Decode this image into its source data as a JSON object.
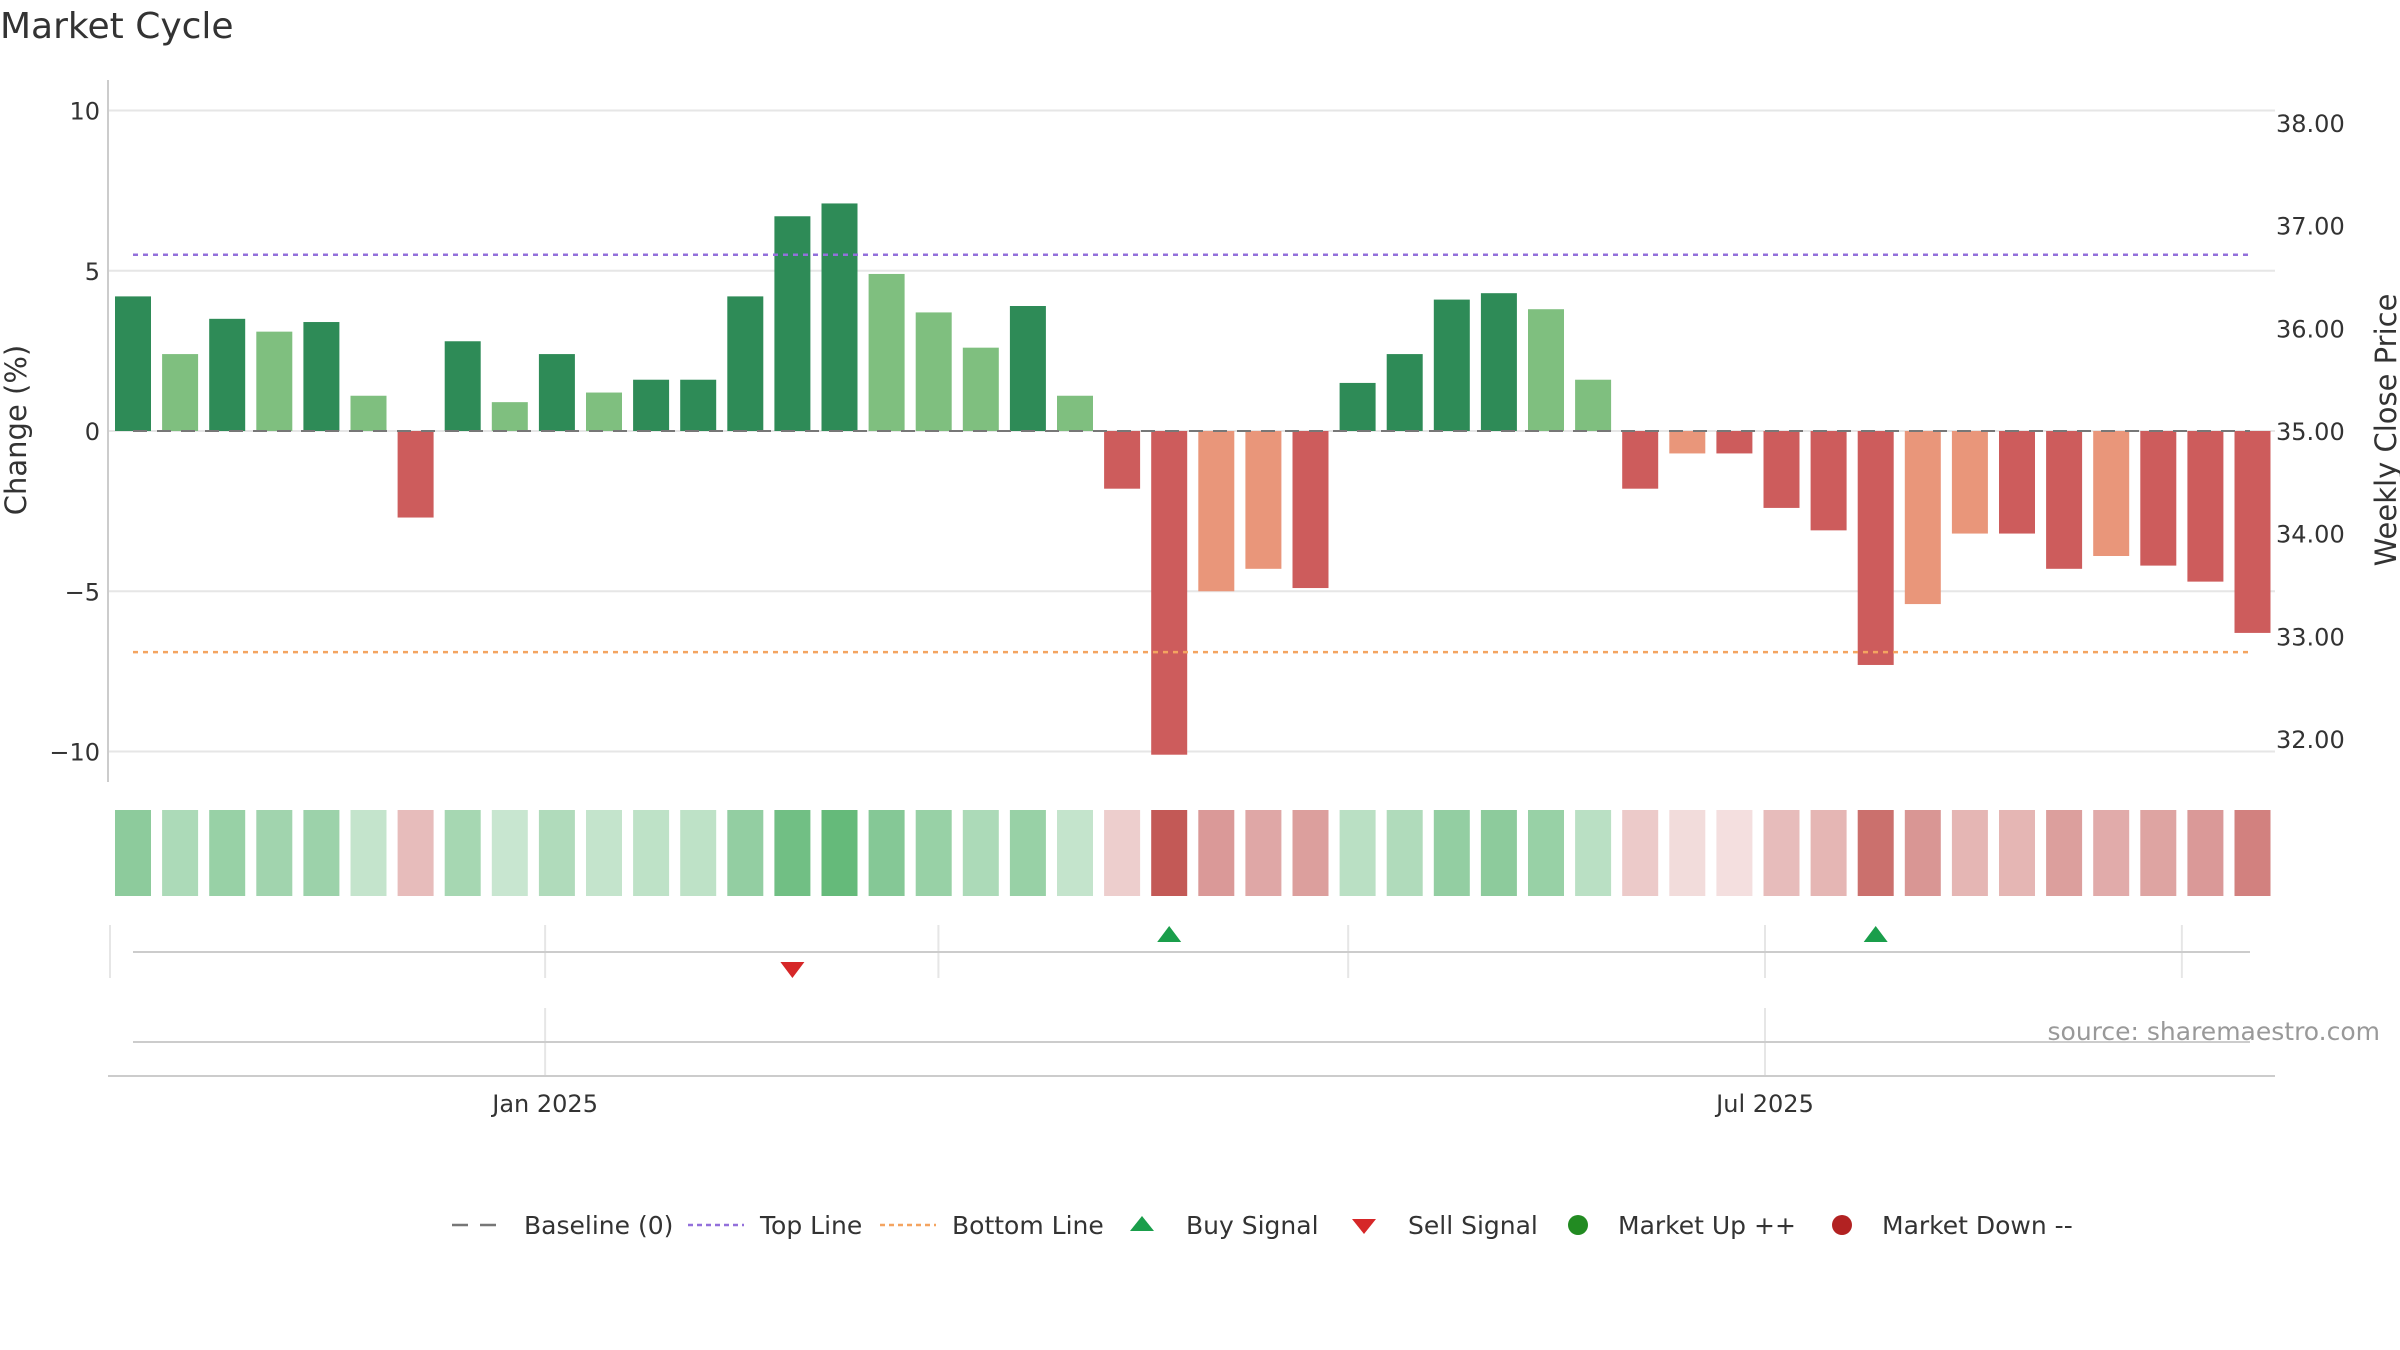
{
  "chart_data": {
    "type": "bar",
    "title": "Market Cycle",
    "ylabel": "Change (%)",
    "y2label": "Weekly Close Price",
    "ylim": [
      -11,
      11
    ],
    "y2lim": [
      31.6,
      38.3
    ],
    "yticks": [
      10,
      5,
      0,
      -5,
      -10
    ],
    "ytick_labels": [
      "10",
      "5",
      "0",
      "−5",
      "−10"
    ],
    "y2ticks": [
      38,
      37,
      36,
      35,
      34,
      33,
      32
    ],
    "y2tick_labels": [
      "38.00",
      "37.00",
      "36.00",
      "35.00",
      "34.00",
      "33.00",
      "32.00"
    ],
    "x_tick_labels": [
      {
        "label": "Jan 2025",
        "index": 8.75
      },
      {
        "label": "Jul 2025",
        "index": 34.65
      }
    ],
    "x_gridlines_signal": [
      8.75,
      17.1,
      25.8,
      34.65,
      43.5
    ],
    "values": [
      4.2,
      2.4,
      3.5,
      3.1,
      3.4,
      1.1,
      -2.7,
      2.8,
      0.9,
      2.4,
      1.2,
      1.6,
      1.6,
      4.2,
      6.7,
      7.1,
      4.9,
      3.7,
      2.6,
      3.9,
      1.1,
      -1.8,
      -10.1,
      -5.0,
      -4.3,
      -4.9,
      1.5,
      2.4,
      4.1,
      4.3,
      3.8,
      1.6,
      -1.8,
      -0.7,
      -0.7,
      -2.4,
      -3.1,
      -7.3,
      -5.4,
      -3.2,
      -3.2,
      -4.3,
      -3.9,
      -4.2,
      -4.7,
      -6.3
    ],
    "shades": [
      "dark-green",
      "light-green",
      "dark-green",
      "light-green",
      "dark-green",
      "light-green",
      "red",
      "dark-green",
      "light-green",
      "dark-green",
      "light-green",
      "dark-green",
      "dark-green",
      "dark-green",
      "dark-green",
      "dark-green",
      "light-green",
      "light-green",
      "light-green",
      "dark-green",
      "light-green",
      "red",
      "red",
      "salmon",
      "salmon",
      "red",
      "dark-green",
      "dark-green",
      "dark-green",
      "dark-green",
      "light-green",
      "light-green",
      "red",
      "salmon",
      "red",
      "red",
      "red",
      "red",
      "salmon",
      "salmon",
      "red",
      "red",
      "salmon",
      "red",
      "red",
      "red"
    ],
    "heat_strength": [
      0.58,
      0.42,
      0.52,
      0.48,
      0.5,
      0.3,
      0.38,
      0.45,
      0.28,
      0.4,
      0.3,
      0.33,
      0.33,
      0.55,
      0.72,
      0.78,
      0.62,
      0.52,
      0.42,
      0.52,
      0.3,
      0.28,
      0.95,
      0.58,
      0.5,
      0.55,
      0.35,
      0.4,
      0.55,
      0.58,
      0.52,
      0.35,
      0.3,
      0.2,
      0.18,
      0.38,
      0.42,
      0.82,
      0.6,
      0.42,
      0.42,
      0.55,
      0.48,
      0.52,
      0.58,
      0.72
    ],
    "top_line": 5.5,
    "bottom_line": -6.9,
    "baseline": 0,
    "buy_signals": [
      22,
      37
    ],
    "sell_signals": [
      14
    ],
    "colors": {
      "dark_green": "#2e8b57",
      "light_green": "#7fbf7f",
      "red": "#cd5c5c",
      "salmon": "#e9967a",
      "top_line": "#9370db",
      "bottom_line": "#f4a460",
      "baseline": "#777777",
      "buy": "#1a9e4b",
      "sell": "#d62728",
      "market_up": "#228b22",
      "market_down": "#b22222",
      "heat_green": "#3aa655",
      "heat_red": "#c0504d",
      "grid": "#e6e6e6",
      "axis": "#cccccc"
    },
    "legend": [
      {
        "key": "baseline",
        "label": "Baseline (0)",
        "marker": "dash"
      },
      {
        "key": "top_line",
        "label": "Top Line",
        "marker": "dot-line"
      },
      {
        "key": "bottom_line",
        "label": "Bottom Line",
        "marker": "dot-line"
      },
      {
        "key": "buy",
        "label": "Buy Signal",
        "marker": "triangle-up"
      },
      {
        "key": "sell",
        "label": "Sell Signal",
        "marker": "triangle-down"
      },
      {
        "key": "market_up",
        "label": "Market Up ++",
        "marker": "circle"
      },
      {
        "key": "market_down",
        "label": "Market Down --",
        "marker": "circle"
      }
    ],
    "source": "source: sharemaestro.com"
  }
}
